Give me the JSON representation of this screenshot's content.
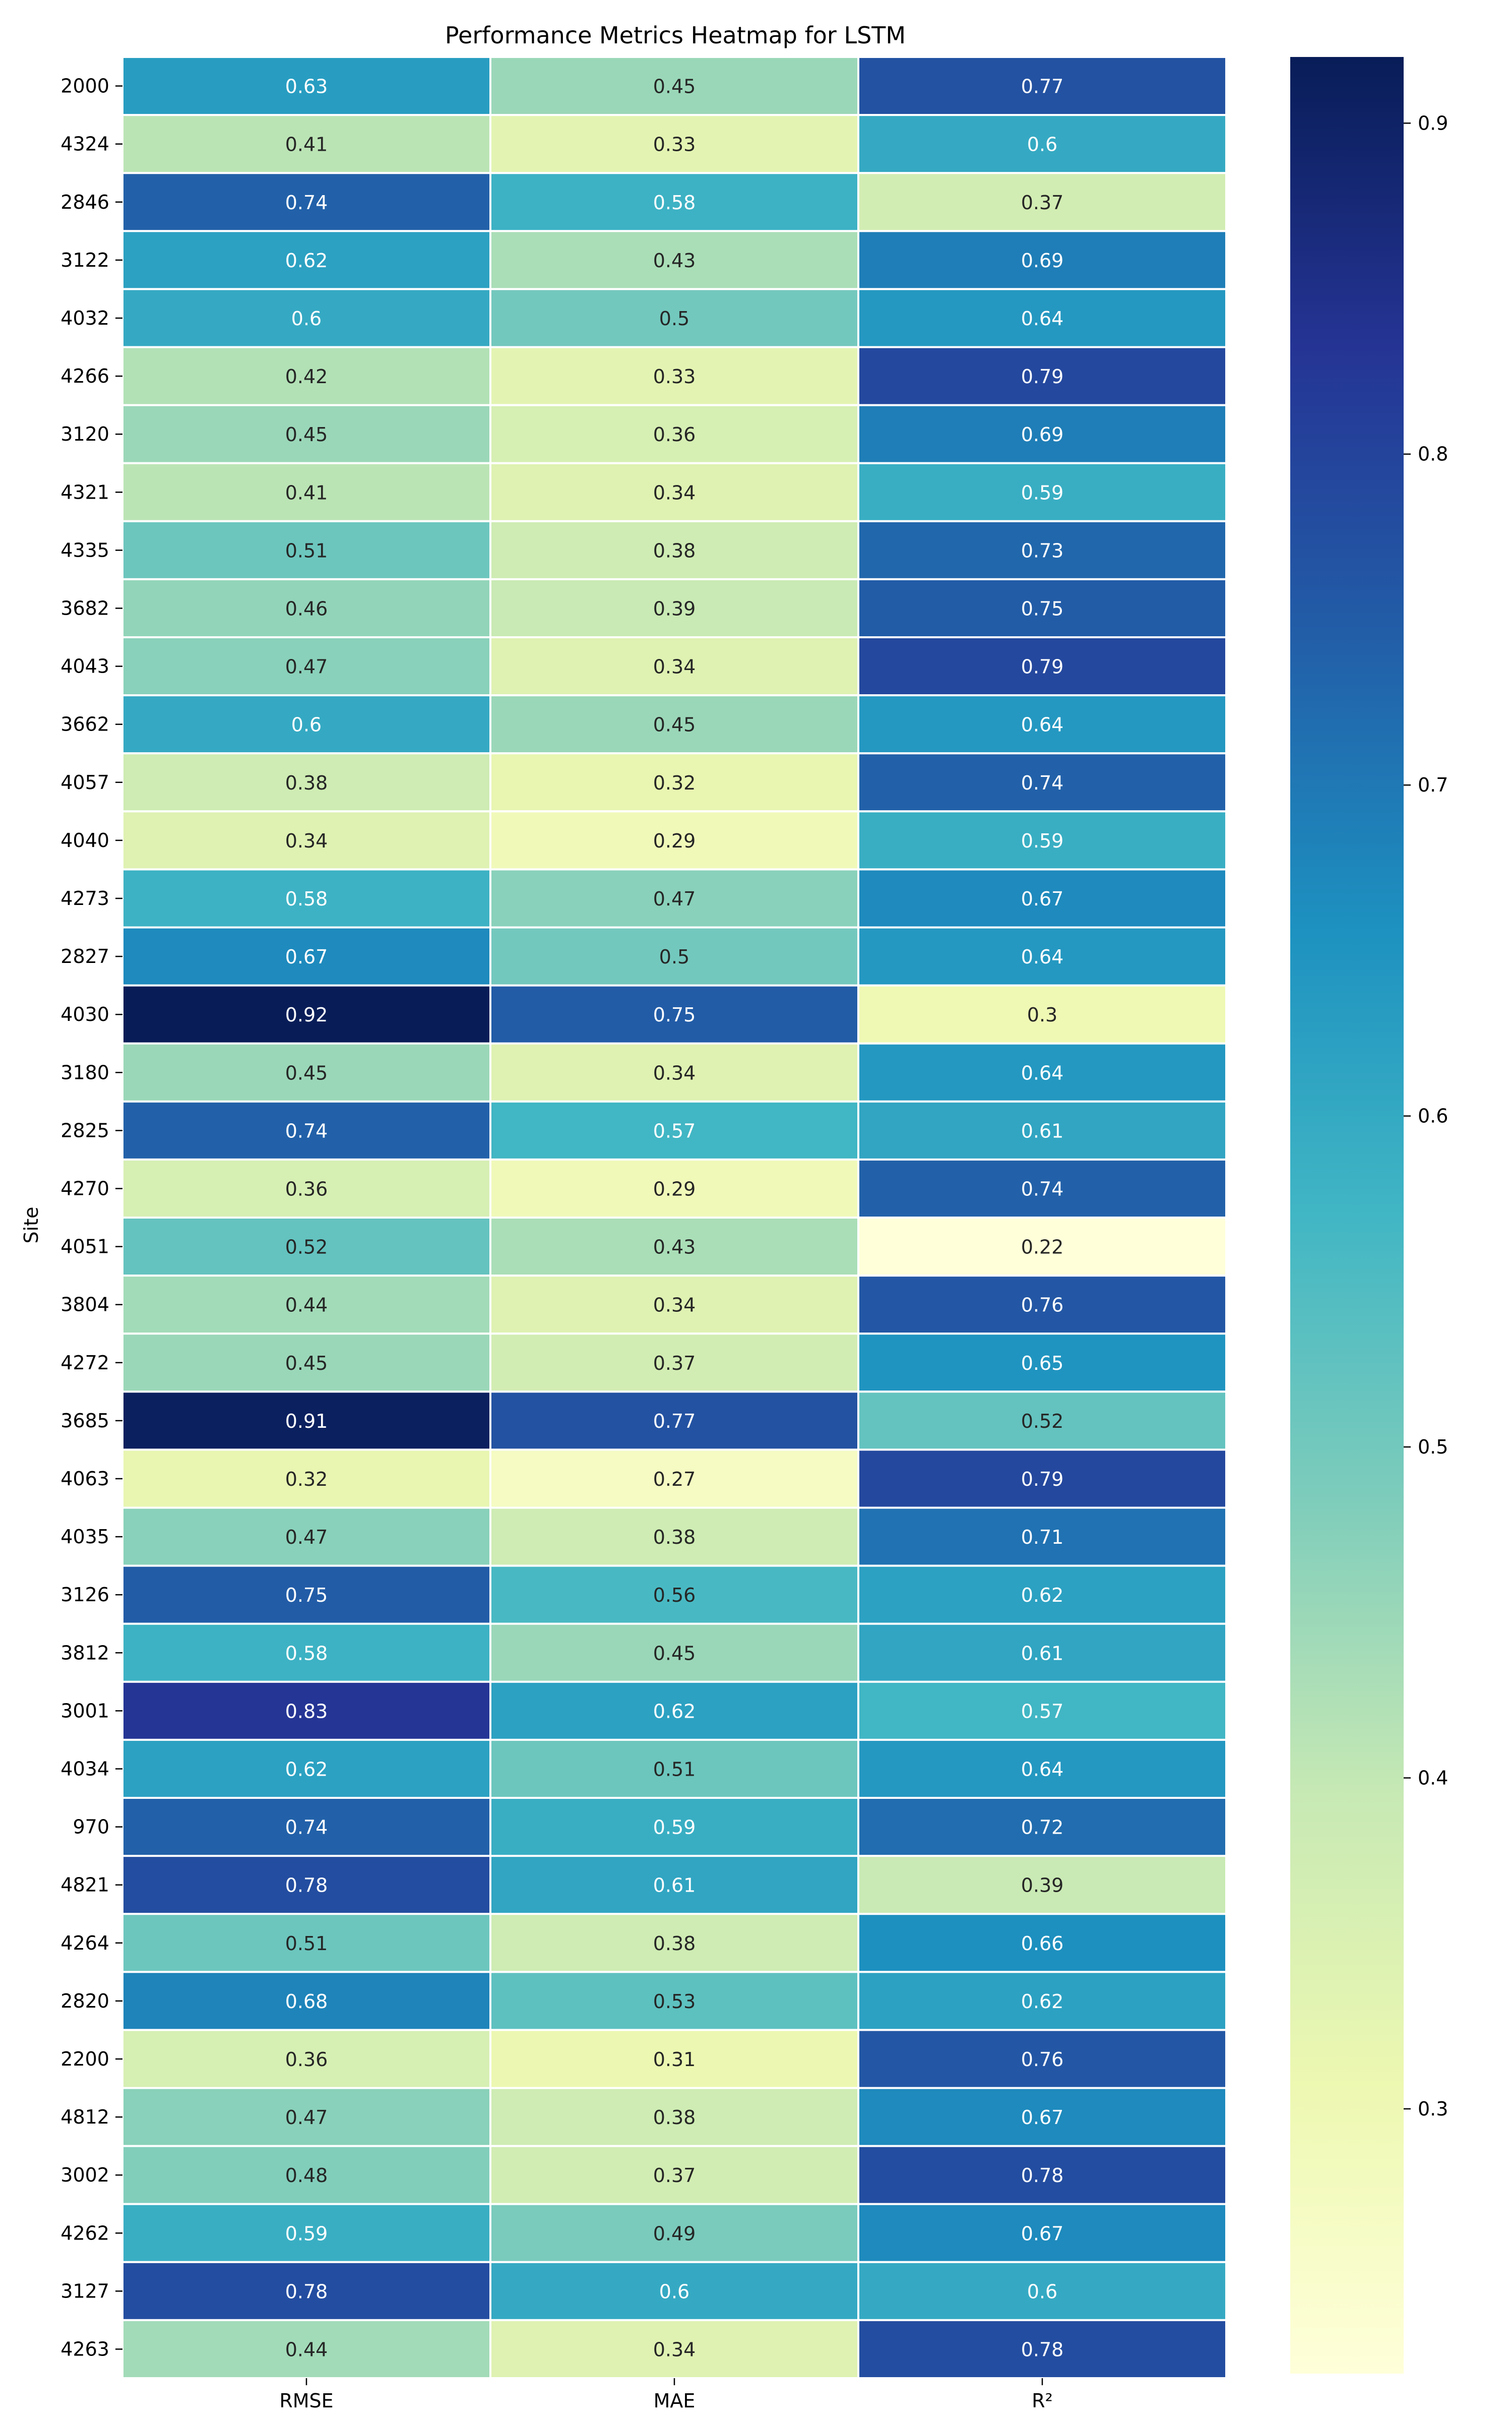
{
  "chart_data": {
    "type": "heatmap",
    "title": "Performance Metrics Heatmap for LSTM",
    "xlabel": "",
    "ylabel": "Site",
    "columns": [
      "RMSE",
      "MAE",
      "R²"
    ],
    "rows": [
      "2000",
      "4324",
      "2846",
      "3122",
      "4032",
      "4266",
      "3120",
      "4321",
      "4335",
      "3682",
      "4043",
      "3662",
      "4057",
      "4040",
      "4273",
      "2827",
      "4030",
      "3180",
      "2825",
      "4270",
      "4051",
      "3804",
      "4272",
      "3685",
      "4063",
      "4035",
      "3126",
      "3812",
      "3001",
      "4034",
      "970",
      "4821",
      "4264",
      "2820",
      "2200",
      "4812",
      "3002",
      "4262",
      "3127",
      "4263"
    ],
    "values": [
      [
        0.63,
        0.45,
        0.77
      ],
      [
        0.41,
        0.33,
        0.6
      ],
      [
        0.74,
        0.58,
        0.37
      ],
      [
        0.62,
        0.43,
        0.69
      ],
      [
        0.6,
        0.5,
        0.64
      ],
      [
        0.42,
        0.33,
        0.79
      ],
      [
        0.45,
        0.36,
        0.69
      ],
      [
        0.41,
        0.34,
        0.59
      ],
      [
        0.51,
        0.38,
        0.73
      ],
      [
        0.46,
        0.39,
        0.75
      ],
      [
        0.47,
        0.34,
        0.79
      ],
      [
        0.6,
        0.45,
        0.64
      ],
      [
        0.38,
        0.32,
        0.74
      ],
      [
        0.34,
        0.29,
        0.59
      ],
      [
        0.58,
        0.47,
        0.67
      ],
      [
        0.67,
        0.5,
        0.64
      ],
      [
        0.92,
        0.75,
        0.3
      ],
      [
        0.45,
        0.34,
        0.64
      ],
      [
        0.74,
        0.57,
        0.61
      ],
      [
        0.36,
        0.29,
        0.74
      ],
      [
        0.52,
        0.43,
        0.22
      ],
      [
        0.44,
        0.34,
        0.76
      ],
      [
        0.45,
        0.37,
        0.65
      ],
      [
        0.91,
        0.77,
        0.52
      ],
      [
        0.32,
        0.27,
        0.79
      ],
      [
        0.47,
        0.38,
        0.71
      ],
      [
        0.75,
        0.56,
        0.62
      ],
      [
        0.58,
        0.45,
        0.61
      ],
      [
        0.83,
        0.62,
        0.57
      ],
      [
        0.62,
        0.51,
        0.64
      ],
      [
        0.74,
        0.59,
        0.72
      ],
      [
        0.78,
        0.61,
        0.39
      ],
      [
        0.51,
        0.38,
        0.66
      ],
      [
        0.68,
        0.53,
        0.62
      ],
      [
        0.36,
        0.31,
        0.76
      ],
      [
        0.47,
        0.38,
        0.67
      ],
      [
        0.48,
        0.37,
        0.78
      ],
      [
        0.59,
        0.49,
        0.67
      ],
      [
        0.78,
        0.6,
        0.6
      ],
      [
        0.44,
        0.34,
        0.78
      ]
    ],
    "colormap": "YlGnBu",
    "colormap_stops": [
      "#ffffd9",
      "#edf8b1",
      "#c7e9b4",
      "#7fcdbb",
      "#41b6c4",
      "#1d91c0",
      "#225ea8",
      "#253494",
      "#081d58"
    ],
    "colorbar": {
      "min": 0.22,
      "max": 0.92,
      "ticks": [
        0.3,
        0.4,
        0.5,
        0.6,
        0.7,
        0.8,
        0.9
      ]
    },
    "grid": false,
    "legend": "colorbar-right"
  }
}
